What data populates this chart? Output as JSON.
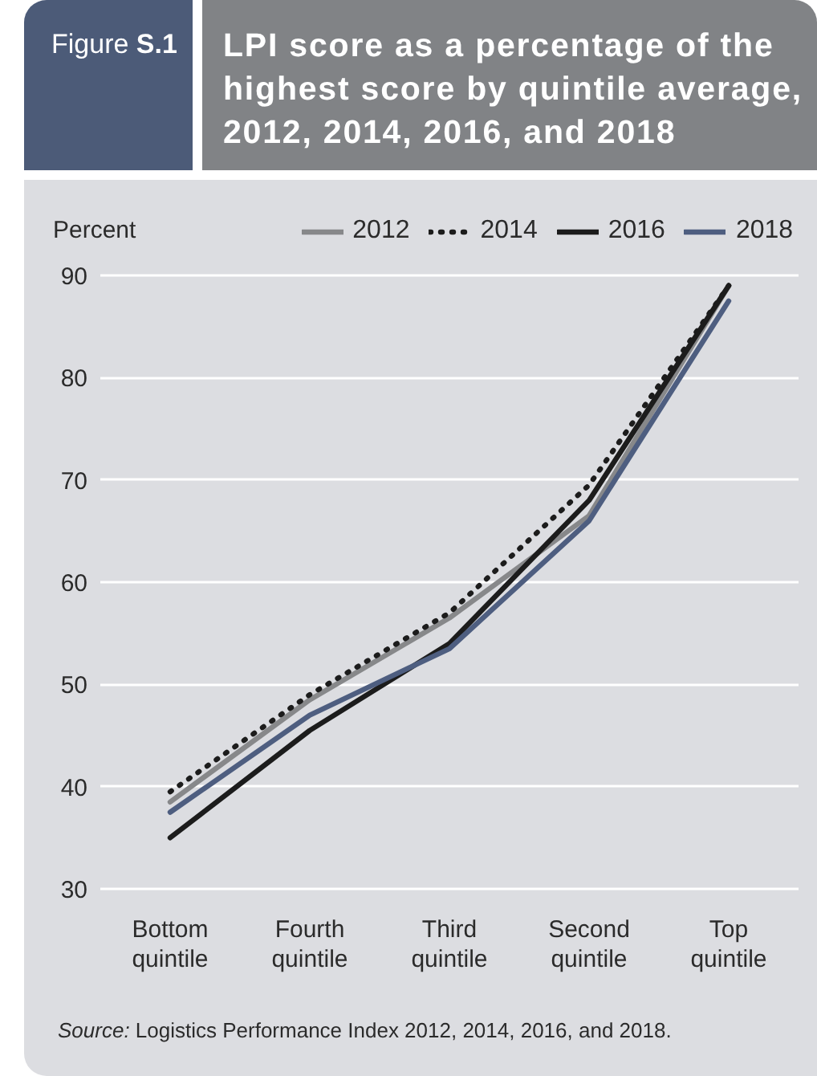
{
  "chart_data": {
    "type": "line",
    "title": "LPI score as a percentage of the highest score by quintile average, 2012, 2014, 2016, and 2018",
    "ylabel": "Percent",
    "annotations": [
      "Figure S.1",
      "Source: Logistics Performance Index 2012, 2014, 2016, and 2018."
    ],
    "categories": [
      "Bottom quintile",
      "Fourth quintile",
      "Third quintile",
      "Second quintile",
      "Top quintile"
    ],
    "series": [
      {
        "name": "2012",
        "color": "#87888a",
        "line_style": "solid",
        "values": [
          38.5,
          48.5,
          56.5,
          66.5,
          89.0
        ]
      },
      {
        "name": "2014",
        "color": "#1c1c1c",
        "line_style": "dotted",
        "values": [
          39.5,
          49.0,
          57.0,
          69.5,
          89.0
        ]
      },
      {
        "name": "2016",
        "color": "#1c1c1c",
        "line_style": "solid",
        "values": [
          35.0,
          45.5,
          54.0,
          68.0,
          89.0
        ]
      },
      {
        "name": "2018",
        "color": "#4e5e80",
        "line_style": "solid",
        "values": [
          37.5,
          47.0,
          53.5,
          66.0,
          87.5
        ]
      }
    ],
    "ylim": [
      30,
      90
    ],
    "yticks": [
      30,
      40,
      50,
      60,
      70,
      80,
      90
    ],
    "grid": "y",
    "legend": "top right"
  }
}
